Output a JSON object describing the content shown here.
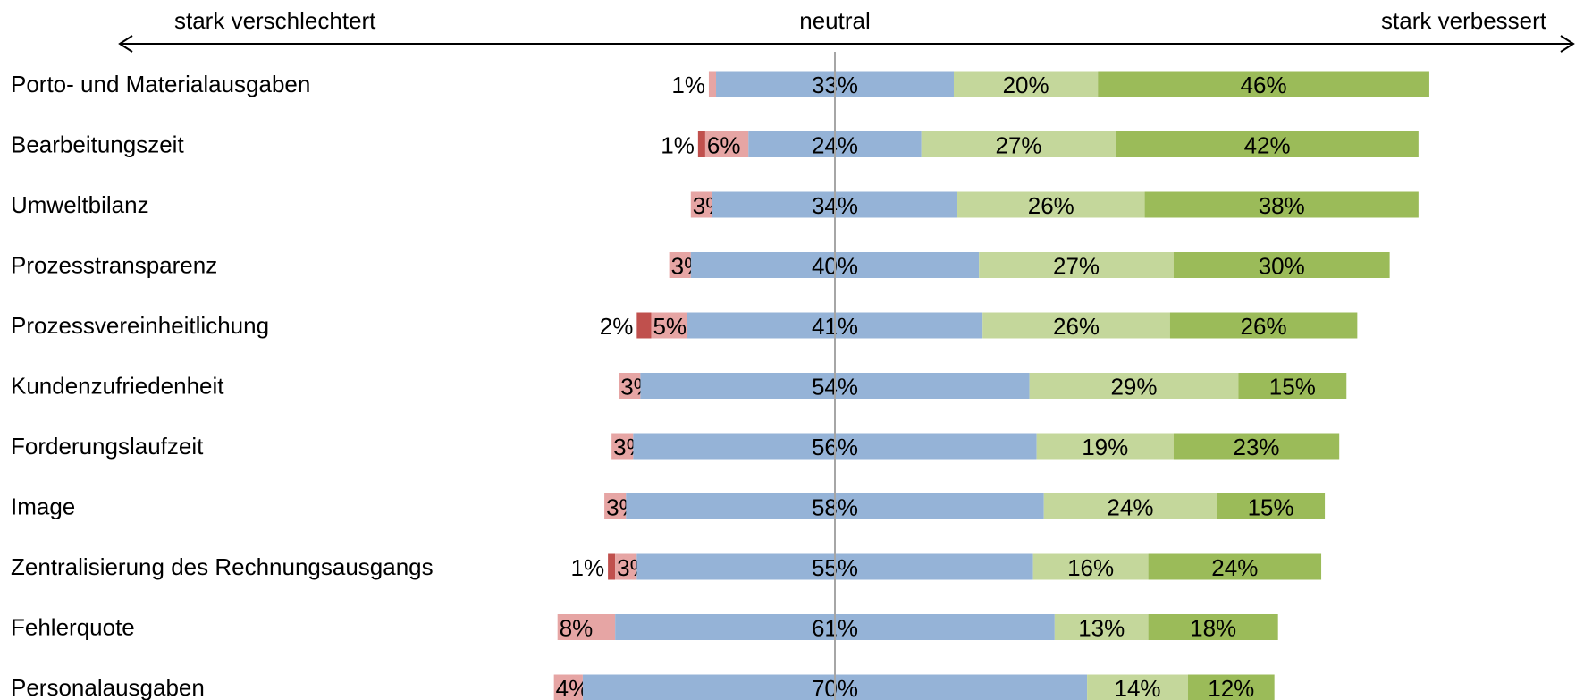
{
  "chart_data": {
    "type": "bar",
    "stacked": true,
    "orientation": "horizontal",
    "diverging": true,
    "scale_labels": {
      "left": "stark verschlechtert",
      "center": "neutral",
      "right": "stark verbessert"
    },
    "categories": [
      "Porto- und Materialausgaben",
      "Bearbeitungszeit",
      "Umweltbilanz",
      "Prozesstransparenz",
      "Prozessvereinheitlichung",
      "Kundenzufriedenheit",
      "Forderungslaufzeit",
      "Image",
      "Zentralisierung des Rechnungsausgangs",
      "Fehlerquote",
      "Personalausgaben"
    ],
    "series": [
      {
        "color": "#c0504d",
        "values": [
          0,
          1,
          0,
          0,
          2,
          0,
          0,
          0,
          1,
          0,
          0
        ],
        "labels": [
          "",
          "1%",
          "",
          "",
          "2%",
          "",
          "",
          "",
          "1%",
          "",
          ""
        ]
      },
      {
        "color": "#e6a5a4",
        "values": [
          1,
          6,
          3,
          3,
          5,
          3,
          3,
          3,
          3,
          8,
          4
        ],
        "labels": [
          "1%",
          "6%",
          "3%",
          "3%",
          "5%",
          "3%",
          "3%",
          "3%",
          "3%",
          "8%",
          "4%"
        ]
      },
      {
        "color": "#95b3d7",
        "values": [
          33,
          24,
          34,
          40,
          41,
          54,
          56,
          58,
          55,
          61,
          70
        ],
        "labels": [
          "33%",
          "24%",
          "34%",
          "40%",
          "41%",
          "54%",
          "56%",
          "58%",
          "55%",
          "61%",
          "70%"
        ]
      },
      {
        "color": "#c4d79b",
        "values": [
          20,
          27,
          26,
          27,
          26,
          29,
          19,
          24,
          16,
          13,
          14
        ],
        "labels": [
          "20%",
          "27%",
          "26%",
          "27%",
          "26%",
          "29%",
          "19%",
          "24%",
          "16%",
          "13%",
          "14%"
        ]
      },
      {
        "color": "#9bbb59",
        "values": [
          46,
          42,
          38,
          30,
          26,
          15,
          23,
          15,
          24,
          18,
          12
        ],
        "labels": [
          "46%",
          "42%",
          "38%",
          "30%",
          "26%",
          "15%",
          "23%",
          "15%",
          "24%",
          "18%",
          "12%"
        ]
      }
    ],
    "outside_label_series": [
      0,
      1,
      0,
      0,
      0,
      0,
      0,
      0,
      0,
      0,
      0
    ],
    "outside_label_row": [
      true,
      false,
      false,
      false,
      false,
      false,
      false,
      false,
      false,
      false,
      false
    ],
    "zero_line_color": "#a6a6a6"
  }
}
